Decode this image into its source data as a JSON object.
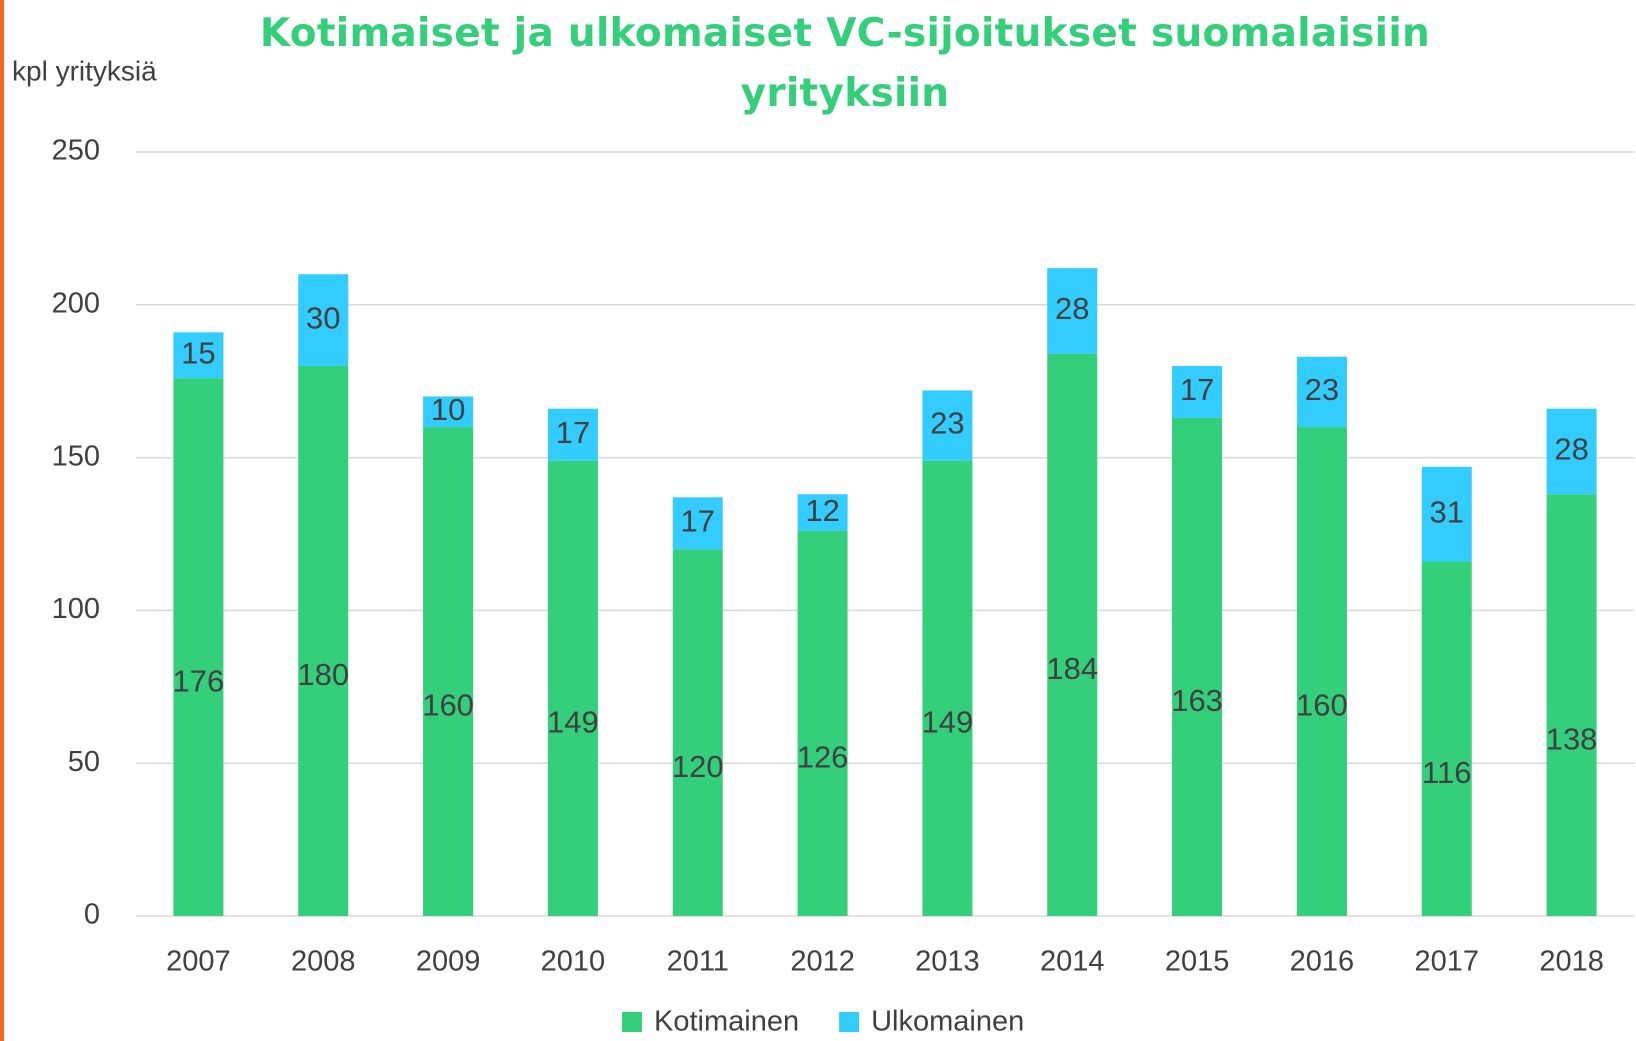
{
  "chart_data": {
    "type": "stacked_bar",
    "title": "Kotimaiset ja ulkomaiset VC-sijoitukset suomalaisiin yrityksiin",
    "y_axis_label": "kpl yrityksiä",
    "categories": [
      "2007",
      "2008",
      "2009",
      "2010",
      "2011",
      "2012",
      "2013",
      "2014",
      "2015",
      "2016",
      "2017",
      "2018"
    ],
    "series": [
      {
        "name": "Kotimainen",
        "color": "#33cf7a",
        "values": [
          176,
          180,
          160,
          149,
          120,
          126,
          149,
          184,
          163,
          160,
          116,
          138
        ]
      },
      {
        "name": "Ulkomainen",
        "color": "#33ccff",
        "values": [
          15,
          30,
          10,
          17,
          17,
          12,
          23,
          28,
          17,
          23,
          31,
          28
        ]
      }
    ],
    "ylim": [
      0,
      250
    ],
    "yticks": [
      0,
      50,
      100,
      150,
      200,
      250
    ],
    "grid": true,
    "legend": "bottom"
  }
}
